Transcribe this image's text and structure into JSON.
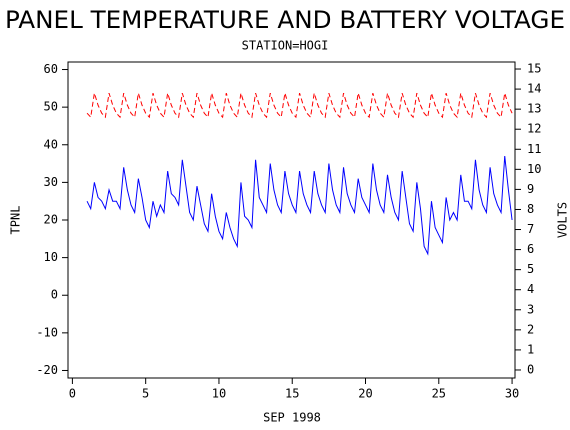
{
  "chart_data": {
    "type": "line",
    "title": "PANEL TEMPERATURE AND BATTERY VOLTAGE",
    "subtitle": "STATION=HOGI",
    "x_label": "SEP 1998",
    "y_label": "TPNL",
    "y2_label": "VOLTS",
    "x": [
      1,
      1.25,
      1.5,
      1.75,
      2,
      2.25,
      2.5,
      2.75,
      3,
      3.25,
      3.5,
      3.75,
      4,
      4.25,
      4.5,
      4.75,
      5,
      5.25,
      5.5,
      5.75,
      6,
      6.25,
      6.5,
      6.75,
      7,
      7.25,
      7.5,
      7.75,
      8,
      8.25,
      8.5,
      8.75,
      9,
      9.25,
      9.5,
      9.75,
      10,
      10.25,
      10.5,
      10.75,
      11,
      11.25,
      11.5,
      11.75,
      12,
      12.25,
      12.5,
      12.75,
      13,
      13.25,
      13.5,
      13.75,
      14,
      14.25,
      14.5,
      14.75,
      15,
      15.25,
      15.5,
      15.75,
      16,
      16.25,
      16.5,
      16.75,
      17,
      17.25,
      17.5,
      17.75,
      18,
      18.25,
      18.5,
      18.75,
      19,
      19.25,
      19.5,
      19.75,
      20,
      20.25,
      20.5,
      20.75,
      21,
      21.25,
      21.5,
      21.75,
      22,
      22.25,
      22.5,
      22.75,
      23,
      23.25,
      23.5,
      23.75,
      24,
      24.25,
      24.5,
      24.75,
      25,
      25.25,
      25.5,
      25.75,
      26,
      26.25,
      26.5,
      26.75,
      27,
      27.25,
      27.5,
      27.75,
      28,
      28.25,
      28.5,
      28.75,
      29,
      29.25,
      29.5,
      29.75,
      30
    ],
    "series": [
      {
        "color": "#0000ff",
        "axis": "y",
        "dash": false,
        "values": [
          25,
          23,
          30,
          26,
          25,
          23,
          28,
          25,
          25,
          23,
          34,
          28,
          24,
          22,
          31,
          26,
          20,
          18,
          25,
          21,
          24,
          22,
          33,
          27,
          26,
          24,
          36,
          29,
          22,
          20,
          29,
          24,
          19,
          17,
          27,
          21,
          17,
          15,
          22,
          18,
          15,
          13,
          30,
          21,
          20,
          18,
          36,
          26,
          24,
          22,
          35,
          28,
          24,
          22,
          33,
          27,
          24,
          22,
          33,
          27,
          24,
          22,
          33,
          27,
          24,
          22,
          35,
          28,
          24,
          22,
          34,
          27,
          24,
          22,
          31,
          26,
          24,
          22,
          35,
          28,
          24,
          22,
          32,
          26,
          22,
          20,
          33,
          26,
          19,
          17,
          30,
          23,
          13,
          11,
          25,
          18,
          16,
          14,
          26,
          20,
          22,
          20,
          32,
          25,
          25,
          23,
          36,
          28,
          24,
          22,
          34,
          27,
          24,
          22,
          37,
          28,
          20
        ]
      },
      {
        "color": "#ff0000",
        "axis": "y2",
        "dash": true,
        "values": [
          12.8,
          12.6,
          13.8,
          13.2,
          12.8,
          12.6,
          13.8,
          13.2,
          12.8,
          12.6,
          13.8,
          13.2,
          12.8,
          12.6,
          13.8,
          13.2,
          12.8,
          12.6,
          13.8,
          13.2,
          12.8,
          12.6,
          13.8,
          13.2,
          12.8,
          12.6,
          13.8,
          13.2,
          12.8,
          12.6,
          13.8,
          13.2,
          12.8,
          12.6,
          13.8,
          13.2,
          12.8,
          12.6,
          13.8,
          13.2,
          12.8,
          12.6,
          13.8,
          13.2,
          12.8,
          12.6,
          13.8,
          13.2,
          12.8,
          12.6,
          13.8,
          13.2,
          12.8,
          12.6,
          13.8,
          13.2,
          12.8,
          12.6,
          13.8,
          13.2,
          12.8,
          12.6,
          13.8,
          13.2,
          12.8,
          12.6,
          13.8,
          13.2,
          12.8,
          12.6,
          13.8,
          13.2,
          12.8,
          12.6,
          13.8,
          13.2,
          12.8,
          12.6,
          13.8,
          13.2,
          12.8,
          12.6,
          13.8,
          13.2,
          12.8,
          12.6,
          13.8,
          13.2,
          12.8,
          12.6,
          13.8,
          13.2,
          12.8,
          12.6,
          13.8,
          13.2,
          12.8,
          12.6,
          13.8,
          13.2,
          12.8,
          12.6,
          13.8,
          13.2,
          12.8,
          12.6,
          13.8,
          13.2,
          12.8,
          12.6,
          13.8,
          13.2,
          12.8,
          12.6,
          13.8,
          13.2,
          12.8
        ]
      }
    ],
    "xlim": [
      -0.3,
      30.2
    ],
    "xticks": [
      0,
      5,
      10,
      15,
      20,
      25,
      30
    ],
    "ylim": [
      -22,
      62
    ],
    "yticks": [
      -20,
      -10,
      0,
      10,
      20,
      30,
      40,
      50,
      60
    ],
    "y2lim": [
      -0.4,
      15.35
    ],
    "y2ticks": [
      0,
      1,
      2,
      3,
      4,
      5,
      6,
      7,
      8,
      9,
      10,
      11,
      12,
      13,
      14,
      15
    ]
  }
}
